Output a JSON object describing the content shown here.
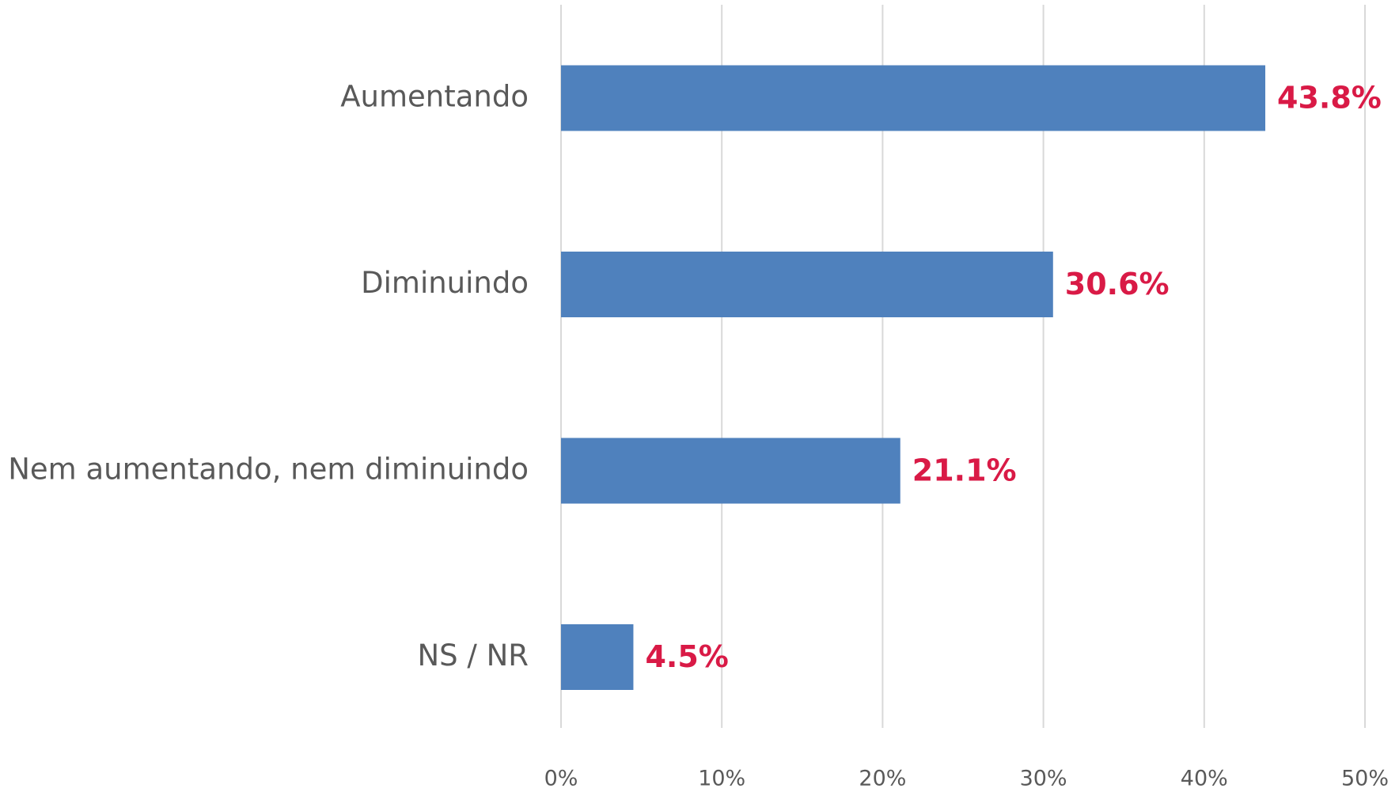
{
  "chart_data": {
    "type": "bar",
    "orientation": "horizontal",
    "categories": [
      "Aumentando",
      "Diminuindo",
      "Nem aumentando, nem diminuindo",
      "NS / NR"
    ],
    "values": [
      43.8,
      30.6,
      21.1,
      4.5
    ],
    "value_labels": [
      "43.8%",
      "30.6%",
      "21.1%",
      "4.5%"
    ],
    "color": "#4f81bd",
    "label_color": "#d91a46",
    "xlim": [
      0,
      50
    ],
    "xticks": [
      {
        "value": 0,
        "label": "0%"
      },
      {
        "value": 10,
        "label": "10%"
      },
      {
        "value": 20,
        "label": "20%"
      },
      {
        "value": 30,
        "label": "30%"
      },
      {
        "value": 40,
        "label": "40%"
      },
      {
        "value": 50,
        "label": "50%"
      }
    ],
    "grid": true
  }
}
